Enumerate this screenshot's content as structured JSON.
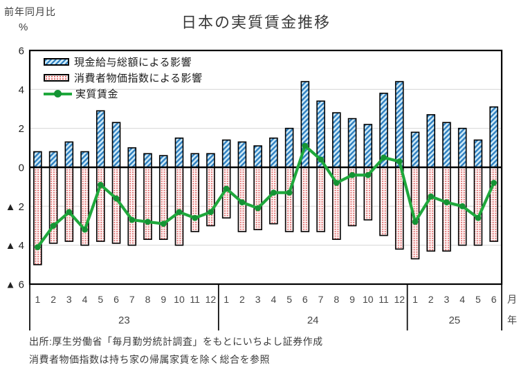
{
  "page": {
    "title": "日本の実質賃金推移",
    "y_axis_caption_line1": "前年同月比",
    "y_axis_caption_line2": "%"
  },
  "legend": {
    "items": [
      {
        "label": "現金給与総額による影響",
        "swatch": "blue-hatch"
      },
      {
        "label": "消費者物価指数による影響",
        "swatch": "pink-dots"
      },
      {
        "label": "実質賃金",
        "swatch": "green-line"
      }
    ]
  },
  "footer": {
    "line1": "出所:厚生労働省「毎月勤労統計調査」をもとにいちよし証券作成",
    "line2": "消費者物価指数は持ち家の帰属家賃を除く総合を参照"
  },
  "colors": {
    "cash_bar_stripe": "#2e7fc0",
    "cash_bar_bg": "#cfeaf7",
    "cpi_mark": "#d94f4f",
    "cpi_bg": "#fdf2f2",
    "real_wage_line": "#1fa83c",
    "real_wage_marker": "#149434",
    "grid": "#d9d9d9",
    "axis": "#000000"
  },
  "chart_data": {
    "type": "bar",
    "subtype": "contribution-bars-with-line",
    "title": "日本の実質賃金推移",
    "ylabel": "前年同月比 %",
    "ylim": [
      -6,
      6
    ],
    "grid": true,
    "legend_position": "top-left-inside",
    "categories": [
      "1",
      "2",
      "3",
      "4",
      "5",
      "6",
      "7",
      "8",
      "9",
      "10",
      "11",
      "12",
      "1",
      "2",
      "3",
      "4",
      "5",
      "6",
      "7",
      "8",
      "9",
      "10",
      "11",
      "12",
      "1",
      "2",
      "3",
      "4",
      "5",
      "6"
    ],
    "year_groups": [
      {
        "label": "23",
        "months": 12
      },
      {
        "label": "24",
        "months": 12
      },
      {
        "label": "25",
        "months": 6
      }
    ],
    "x_axis_suffix": {
      "month": "月",
      "year": "年"
    },
    "yticks": [
      {
        "value": 6,
        "label": "6"
      },
      {
        "value": 4,
        "label": "4"
      },
      {
        "value": 2,
        "label": "2"
      },
      {
        "value": 0,
        "label": "0"
      },
      {
        "value": -2,
        "label": "▲ 2"
      },
      {
        "value": -4,
        "label": "▲ 4"
      },
      {
        "value": -6,
        "label": "▲ 6"
      }
    ],
    "series": [
      {
        "name": "現金給与総額による影響",
        "type": "bar",
        "direction": "positive",
        "values": [
          0.8,
          0.8,
          1.3,
          0.8,
          2.9,
          2.3,
          1.0,
          0.7,
          0.6,
          1.5,
          0.7,
          0.7,
          1.4,
          1.3,
          1.1,
          1.5,
          2.0,
          4.4,
          3.4,
          2.8,
          2.5,
          2.2,
          3.8,
          4.4,
          1.8,
          2.7,
          2.3,
          2.0,
          1.4,
          3.1
        ]
      },
      {
        "name": "消費者物価指数による影響",
        "type": "bar",
        "direction": "negative",
        "values": [
          -5.0,
          -3.9,
          -3.8,
          -4.0,
          -3.8,
          -3.9,
          -4.0,
          -3.7,
          -3.7,
          -4.0,
          -3.3,
          -3.0,
          -2.6,
          -3.3,
          -3.2,
          -2.9,
          -3.3,
          -3.3,
          -3.3,
          -3.7,
          -3.0,
          -2.7,
          -3.5,
          -4.2,
          -4.7,
          -4.3,
          -4.3,
          -4.0,
          -4.0,
          -3.8
        ]
      },
      {
        "name": "実質賃金",
        "type": "line",
        "values": [
          -4.1,
          -3.0,
          -2.3,
          -3.2,
          -0.9,
          -1.6,
          -2.7,
          -2.8,
          -2.9,
          -2.3,
          -2.6,
          -2.3,
          -1.1,
          -1.8,
          -2.1,
          -1.3,
          -1.3,
          1.1,
          0.4,
          -0.8,
          -0.4,
          -0.4,
          0.5,
          0.3,
          -2.8,
          -1.5,
          -1.8,
          -2.0,
          -2.6,
          -0.8
        ]
      }
    ]
  }
}
